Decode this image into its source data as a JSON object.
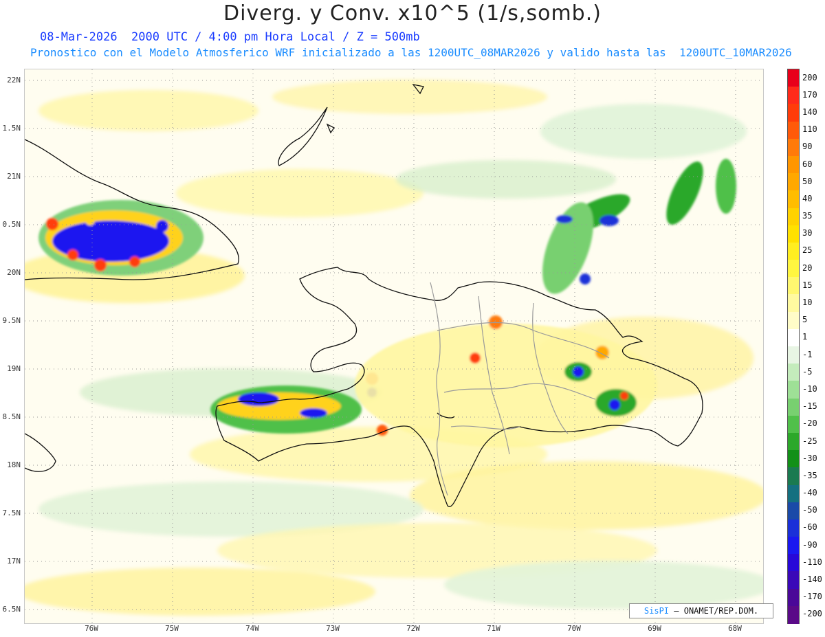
{
  "header": {
    "title": "Diverg. y Conv. x10^5 (1/s,somb.)",
    "subtitle_time": "08-Mar-2026  2000 UTC / 4:00 pm Hora Local / Z = 500mb",
    "subtitle_model": "Pronostico con el Modelo Atmosferico WRF inicializado a las 1200UTC_08MAR2026 y valido hasta las  1200UTC_10MAR2026"
  },
  "map": {
    "region": "Hispaniola",
    "lat_labels": [
      "22N",
      "1.5N",
      "21N",
      "0.5N",
      "20N",
      "9.5N",
      "19N",
      "8.5N",
      "18N",
      "7.5N",
      "17N",
      "6.5N"
    ],
    "lon_labels": [
      "76W",
      "75W",
      "74W",
      "73W",
      "72W",
      "71W",
      "70W",
      "69W",
      "68W"
    ],
    "credit": {
      "brand": "SisPI",
      "org": "ONAMET/REP.DOM."
    }
  },
  "legend": {
    "labels": [
      "200",
      "170",
      "140",
      "110",
      "90",
      "60",
      "50",
      "40",
      "35",
      "30",
      "25",
      "20",
      "15",
      "10",
      "5",
      "1",
      "-1",
      "-5",
      "-10",
      "-15",
      "-20",
      "-25",
      "-30",
      "-35",
      "-40",
      "-50",
      "-60",
      "-90",
      "-110",
      "-140",
      "-170",
      "-200"
    ],
    "colors": [
      "#e8001a",
      "#ff2a1a",
      "#ff3c0a",
      "#ff5a0a",
      "#ff7a0a",
      "#ff9600",
      "#ffa800",
      "#ffbd00",
      "#ffd200",
      "#ffe100",
      "#ffee20",
      "#fff640",
      "#fff870",
      "#fffaa0",
      "#fffcc8",
      "#ffffff",
      "#e8f5e4",
      "#c4ecbc",
      "#9ee096",
      "#78d070",
      "#50c04a",
      "#2ca82a",
      "#129018",
      "#1a7a50",
      "#147080",
      "#1a4aa8",
      "#1a30d8",
      "#1a18f0",
      "#2808d8",
      "#3a08b8",
      "#4a0898",
      "#5a0a88"
    ]
  }
}
